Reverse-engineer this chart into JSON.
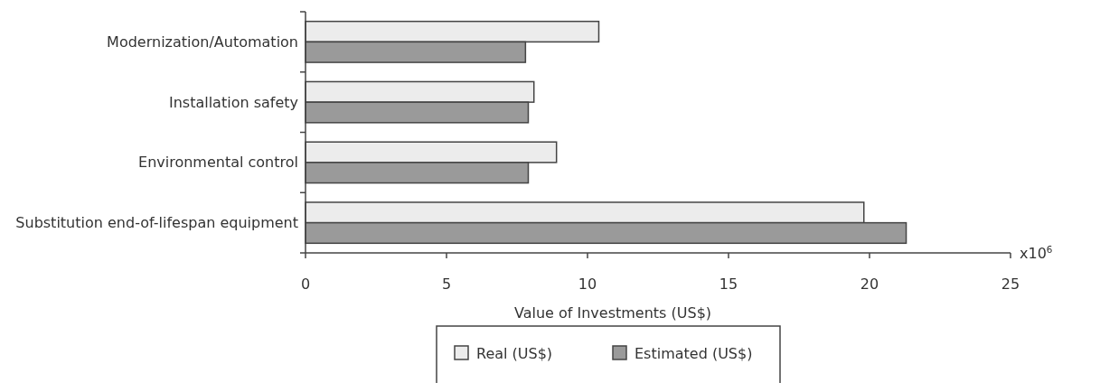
{
  "chart_data": {
    "type": "bar",
    "orientation": "horizontal",
    "xlabel": "Value of Investments (US$)",
    "categories": [
      "Modernization/Automation",
      "Installation safety",
      "Environmental control",
      "Substitution end-of-lifespan equipment"
    ],
    "series": [
      {
        "name": "Real (US$)",
        "color": "#ececec",
        "values": [
          10.4,
          8.1,
          8.9,
          19.8
        ]
      },
      {
        "name": "Estimated (US$)",
        "color": "#9a9a9a",
        "values": [
          7.8,
          7.9,
          7.9,
          21.3
        ]
      }
    ],
    "xlim": [
      0,
      25
    ],
    "xticks": [
      0,
      5,
      10,
      15,
      20,
      25
    ],
    "annotations": [
      "x10$^{6}$"
    ],
    "legend": "bottom",
    "grid": false
  }
}
